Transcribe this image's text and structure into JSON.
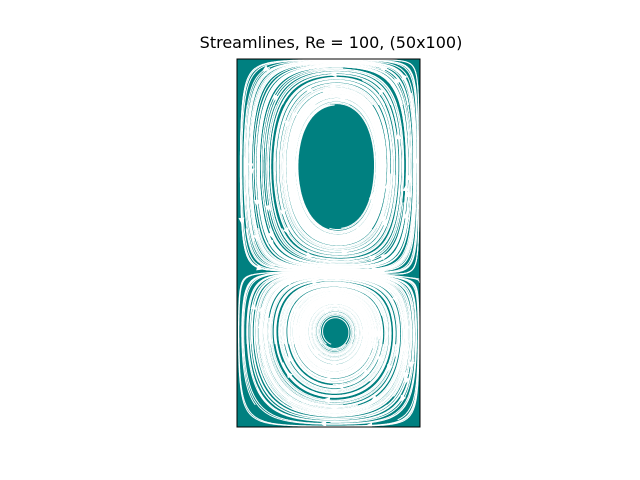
{
  "chart_data": {
    "type": "streamplot",
    "title": "Streamlines, Re = 100, (50x100)",
    "xlabel": "",
    "ylabel": "",
    "grid": false,
    "axes_ticks": false,
    "background_color": "#008080",
    "line_color": "#ffffff",
    "domain": {
      "x": [
        0,
        1
      ],
      "y": [
        0,
        2
      ]
    },
    "vortices": [
      {
        "name": "upper",
        "center": [
          0.58,
          1.75
        ],
        "rotation": "counterclockwise"
      },
      {
        "name": "lower",
        "center": [
          0.56,
          0.45
        ],
        "rotation": "clockwise"
      }
    ]
  }
}
